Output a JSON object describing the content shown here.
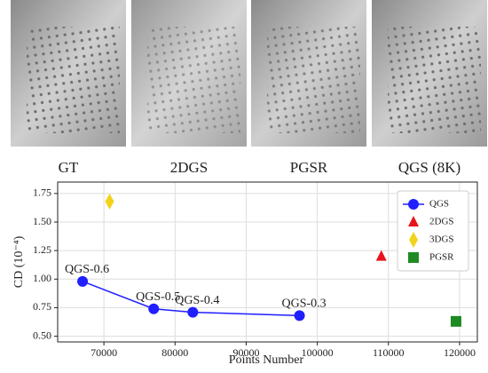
{
  "images": [
    {
      "caption": "GT"
    },
    {
      "caption": "2DGS"
    },
    {
      "caption": "PGSR"
    },
    {
      "caption": "QGS (8K)"
    }
  ],
  "chart_data": {
    "type": "scatter",
    "xlabel": "Points Number",
    "ylabel": "CD (10⁻⁴)",
    "xlim": [
      63500,
      122500
    ],
    "ylim": [
      0.45,
      1.85
    ],
    "xticks": [
      70000,
      80000,
      90000,
      100000,
      110000,
      120000
    ],
    "yticks": [
      {
        "value": 0.5,
        "label": "0.50"
      },
      0.75,
      {
        "value": 1.0,
        "label": "1.00"
      },
      1.25,
      {
        "value": 1.5,
        "label": "1.50"
      },
      1.75
    ],
    "grid": true,
    "legend": "upper right",
    "series": [
      {
        "name": "QGS",
        "color": "#1f1fff",
        "marker": "circle",
        "line": true,
        "x": [
          67000,
          77000,
          82500,
          97500
        ],
        "values": [
          0.98,
          0.74,
          0.71,
          0.68
        ],
        "point_labels": [
          "QGS-0.6",
          "QGS-0.5",
          "QGS-0.4",
          "QGS-0.3"
        ]
      },
      {
        "name": "2DGS",
        "color": "#e8141c",
        "marker": "triangle",
        "x": [
          109000
        ],
        "values": [
          1.2
        ]
      },
      {
        "name": "3DGS",
        "color": "#f2d31b",
        "marker": "diamond",
        "x": [
          70800
        ],
        "values": [
          1.68
        ]
      },
      {
        "name": "PGSR",
        "color": "#1e8a22",
        "marker": "square",
        "x": [
          119500
        ],
        "values": [
          0.63
        ]
      }
    ]
  }
}
